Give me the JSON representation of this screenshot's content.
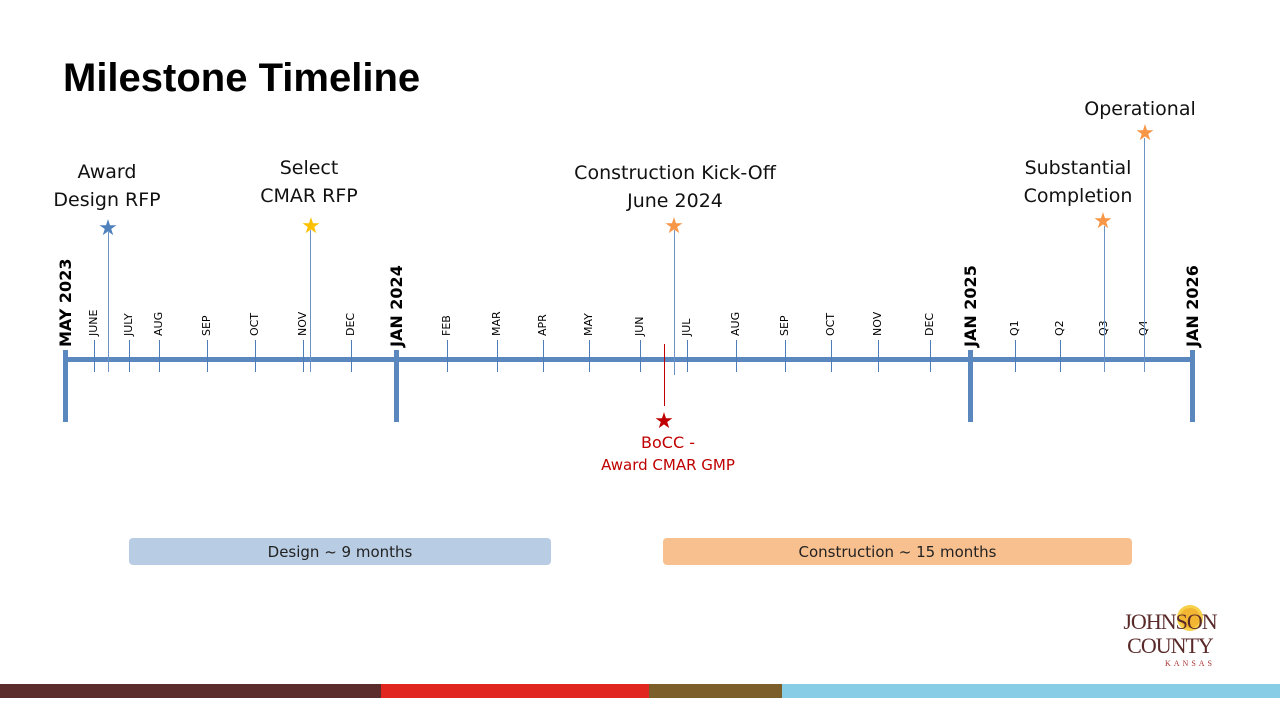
{
  "title": "Milestone Timeline",
  "axis_labels": {
    "major": [
      "MAY 2023",
      "JAN 2024",
      "JAN 2025",
      "JAN 2026"
    ],
    "minor": [
      "JUNE",
      "JULY",
      "AUG",
      "SEP",
      "OCT",
      "NOV",
      "DEC",
      "FEB",
      "MAR",
      "APR",
      "MAY",
      "JUN",
      "JUL",
      "AUG",
      "SEP",
      "OCT",
      "NOV",
      "DEC",
      "Q1",
      "Q2",
      "Q3",
      "Q4"
    ]
  },
  "milestones": [
    {
      "line1": "Award",
      "line2": "Design RFP",
      "color": "#4f81bd"
    },
    {
      "line1": "Select",
      "line2": "CMAR RFP",
      "color": "#ffc000"
    },
    {
      "line1": "Construction Kick-Off",
      "line2": "June 2024",
      "color": "#f79646"
    },
    {
      "line1": "Substantial",
      "line2": "Completion",
      "color": "#f79646"
    },
    {
      "line1": "Operational",
      "color": "#f79646"
    }
  ],
  "bocc": {
    "line1": "BoCC -",
    "line2": "Award CMAR GMP",
    "color": "#c00000"
  },
  "phases": [
    {
      "label": "Design ~ 9 months",
      "color": "#b8cce4"
    },
    {
      "label": "Construction ~ 15  months",
      "color": "#f9c08f"
    }
  ],
  "logo": {
    "line1": "JOHNSON",
    "line2": "COUNTY",
    "line3": "KANSAS"
  }
}
